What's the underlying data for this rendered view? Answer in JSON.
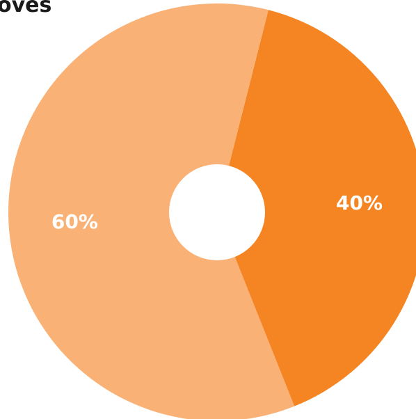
{
  "chart_data": {
    "type": "pie",
    "title": "oves",
    "slices": [
      {
        "label": "40%",
        "value": 40,
        "color": "#f58423"
      },
      {
        "label": "60%",
        "value": 60,
        "color": "#f9b175"
      }
    ],
    "hole_color": "#ffffff"
  }
}
